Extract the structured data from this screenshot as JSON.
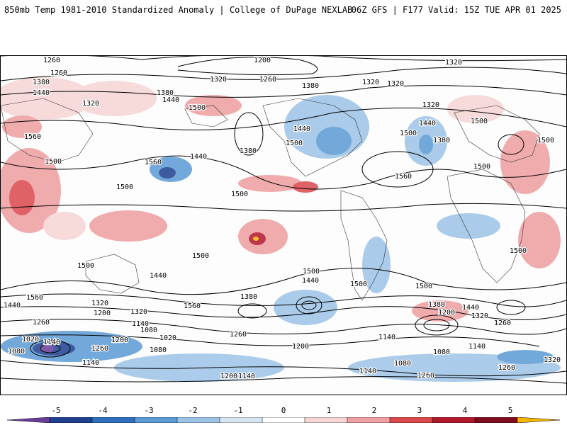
{
  "header": {
    "title": "850mb Temp 1981-2010 Standardized Anomaly | College of DuPage NEXLAB",
    "run_info": "06Z GFS | F177 Valid: 15Z TUE APR 01 2025"
  },
  "contour_labels": [
    "1200",
    "1260",
    "1260",
    "1380",
    "1440",
    "1320",
    "1320",
    "1260",
    "1380",
    "1500",
    "1440",
    "1380",
    "1320",
    "1320",
    "1320",
    "1320",
    "1560",
    "1500",
    "1500",
    "1440",
    "1440",
    "1500",
    "1380",
    "1500",
    "1500",
    "1500",
    "1560",
    "1560",
    "1440",
    "1380",
    "1500",
    "1500",
    "1500",
    "1440",
    "1500",
    "1500",
    "1500",
    "1500",
    "1440",
    "1500",
    "1560",
    "1380",
    "1440",
    "1320",
    "1200",
    "1260",
    "1560",
    "1320",
    "1440",
    "1380",
    "1200",
    "1320",
    "1260",
    "1080",
    "1020",
    "1140",
    "1140",
    "1260",
    "1200",
    "1080",
    "1140",
    "1020",
    "1260",
    "1140",
    "1080",
    "1140",
    "1200",
    "1080",
    "1200",
    "1140",
    "1140",
    "1080",
    "1260",
    "1260",
    "1320"
  ],
  "colorbar": {
    "ticks": [
      "-5",
      "-4",
      "-3",
      "-2",
      "-1",
      "0",
      "1",
      "2",
      "3",
      "4",
      "5"
    ],
    "colors": [
      "#6a3d9a",
      "#1f3f8f",
      "#2f6fbf",
      "#5b9bd5",
      "#9cc3e6",
      "#d7e6f3",
      "#ffffff",
      "#f6d5d5",
      "#ee9f9f",
      "#d9484c",
      "#b2182b",
      "#7f0d1d",
      "#f5b800"
    ]
  }
}
